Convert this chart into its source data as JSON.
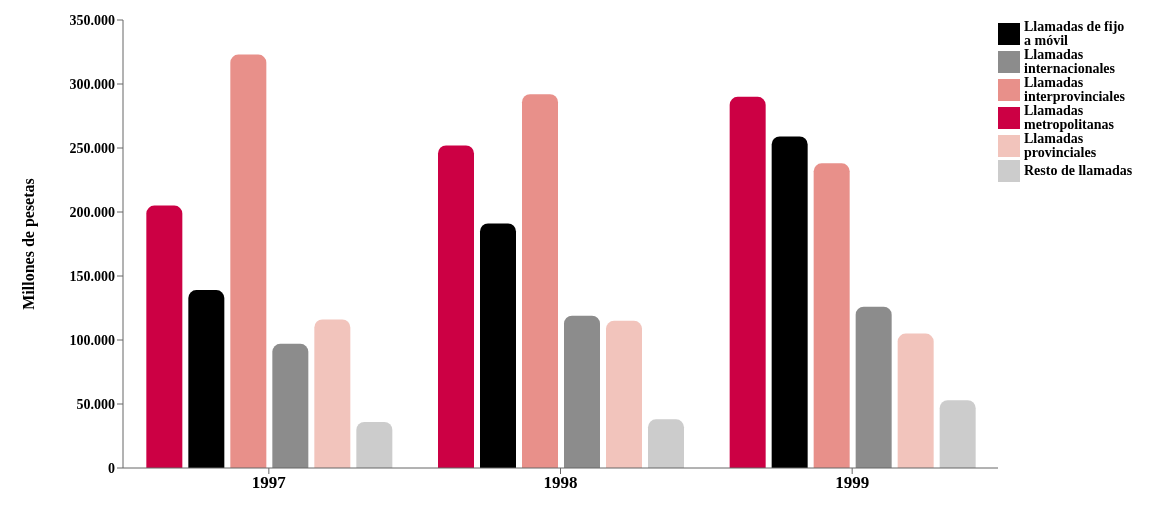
{
  "chart_data": {
    "type": "bar",
    "ylabel": "Millones de pesetas",
    "categories": [
      "1997",
      "1998",
      "1999"
    ],
    "series": [
      {
        "name": "Llamadas metropolitanas",
        "color": "#cc0044",
        "values": [
          205000,
          252000,
          290000
        ]
      },
      {
        "name": "Llamadas de fijo a móvil",
        "color": "#000000",
        "values": [
          139000,
          191000,
          259000
        ]
      },
      {
        "name": "Llamadas interprovinciales",
        "color": "#e8908a",
        "values": [
          323000,
          292000,
          238000
        ]
      },
      {
        "name": "Llamadas internacionales",
        "color": "#8c8c8c",
        "values": [
          97000,
          119000,
          126000
        ]
      },
      {
        "name": "Llamadas provinciales",
        "color": "#f2c4bc",
        "values": [
          116000,
          115000,
          105000
        ]
      },
      {
        "name": "Resto de llamadas",
        "color": "#cccccc",
        "values": [
          36000,
          38000,
          53000
        ]
      }
    ],
    "ylim": [
      0,
      350000
    ],
    "yticks": [
      {
        "value": 0,
        "label": "0"
      },
      {
        "value": 50000,
        "label": "50.000"
      },
      {
        "value": 100000,
        "label": "100.000"
      },
      {
        "value": 150000,
        "label": "150.000"
      },
      {
        "value": 200000,
        "label": "200.000"
      },
      {
        "value": 250000,
        "label": "250.000"
      },
      {
        "value": 300000,
        "label": "300.000"
      },
      {
        "value": 350000,
        "label": "350.000"
      }
    ],
    "legend": "top right",
    "grid": false
  }
}
